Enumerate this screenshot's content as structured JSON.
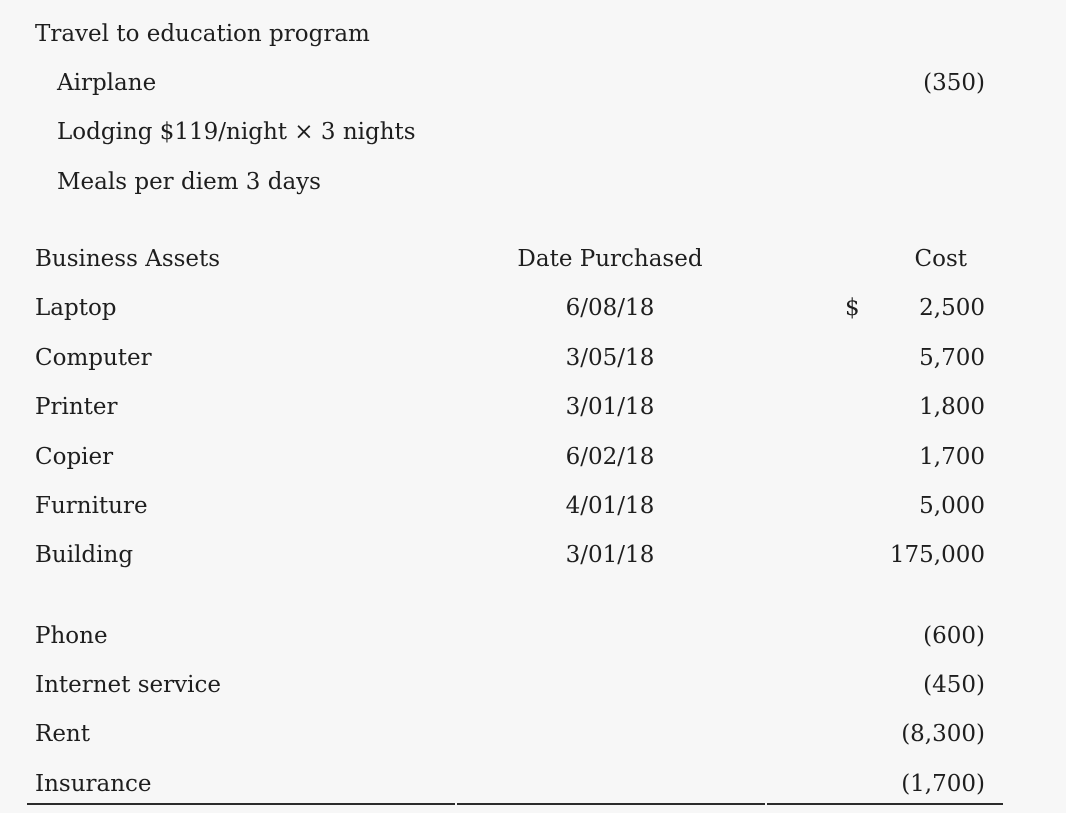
{
  "page": {
    "background_color": "#f7f7f7",
    "text_color": "#1e1e1e",
    "rule_color": "#2b2b2b"
  },
  "travel_section": {
    "title": "Travel to education program",
    "items": [
      {
        "label": "Airplane",
        "amount": "(350)"
      },
      {
        "label": "Lodging $119/night × 3 nights"
      },
      {
        "label": "Meals per diem 3 days"
      }
    ]
  },
  "assets_section": {
    "headers": {
      "name": "Business Assets",
      "date": "Date Purchased",
      "cost": "Cost"
    },
    "rows": [
      {
        "name": "Laptop",
        "date": "6/08/18",
        "currency": "$",
        "cost": "2,500"
      },
      {
        "name": "Computer",
        "date": "3/05/18",
        "currency": "",
        "cost": "5,700"
      },
      {
        "name": "Printer",
        "date": "3/01/18",
        "currency": "",
        "cost": "1,800"
      },
      {
        "name": "Copier",
        "date": "6/02/18",
        "currency": "",
        "cost": "1,700"
      },
      {
        "name": "Furniture",
        "date": "4/01/18",
        "currency": "",
        "cost": "5,000"
      },
      {
        "name": "Building",
        "date": "3/01/18",
        "currency": "",
        "cost": "175,000"
      }
    ]
  },
  "expenses_section": {
    "rows": [
      {
        "label": "Phone",
        "amount": "(600)"
      },
      {
        "label": "Internet service",
        "amount": "(450)"
      },
      {
        "label": "Rent",
        "amount": "(8,300)"
      },
      {
        "label": "Insurance",
        "amount": "(1,700)"
      }
    ]
  }
}
